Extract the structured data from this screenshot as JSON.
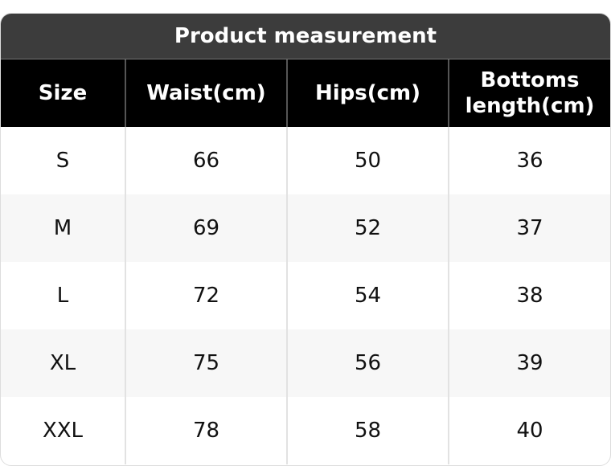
{
  "title": "Product measurement",
  "headers": [
    "Size",
    "Waist(cm)",
    "Hips(cm)",
    "Bottoms length(cm)"
  ],
  "rows": [
    [
      "S",
      "66",
      "50",
      "36"
    ],
    [
      "M",
      "69",
      "52",
      "37"
    ],
    [
      "L",
      "72",
      "54",
      "38"
    ],
    [
      "XL",
      "75",
      "56",
      "39"
    ],
    [
      "XXL",
      "78",
      "58",
      "40"
    ]
  ]
}
